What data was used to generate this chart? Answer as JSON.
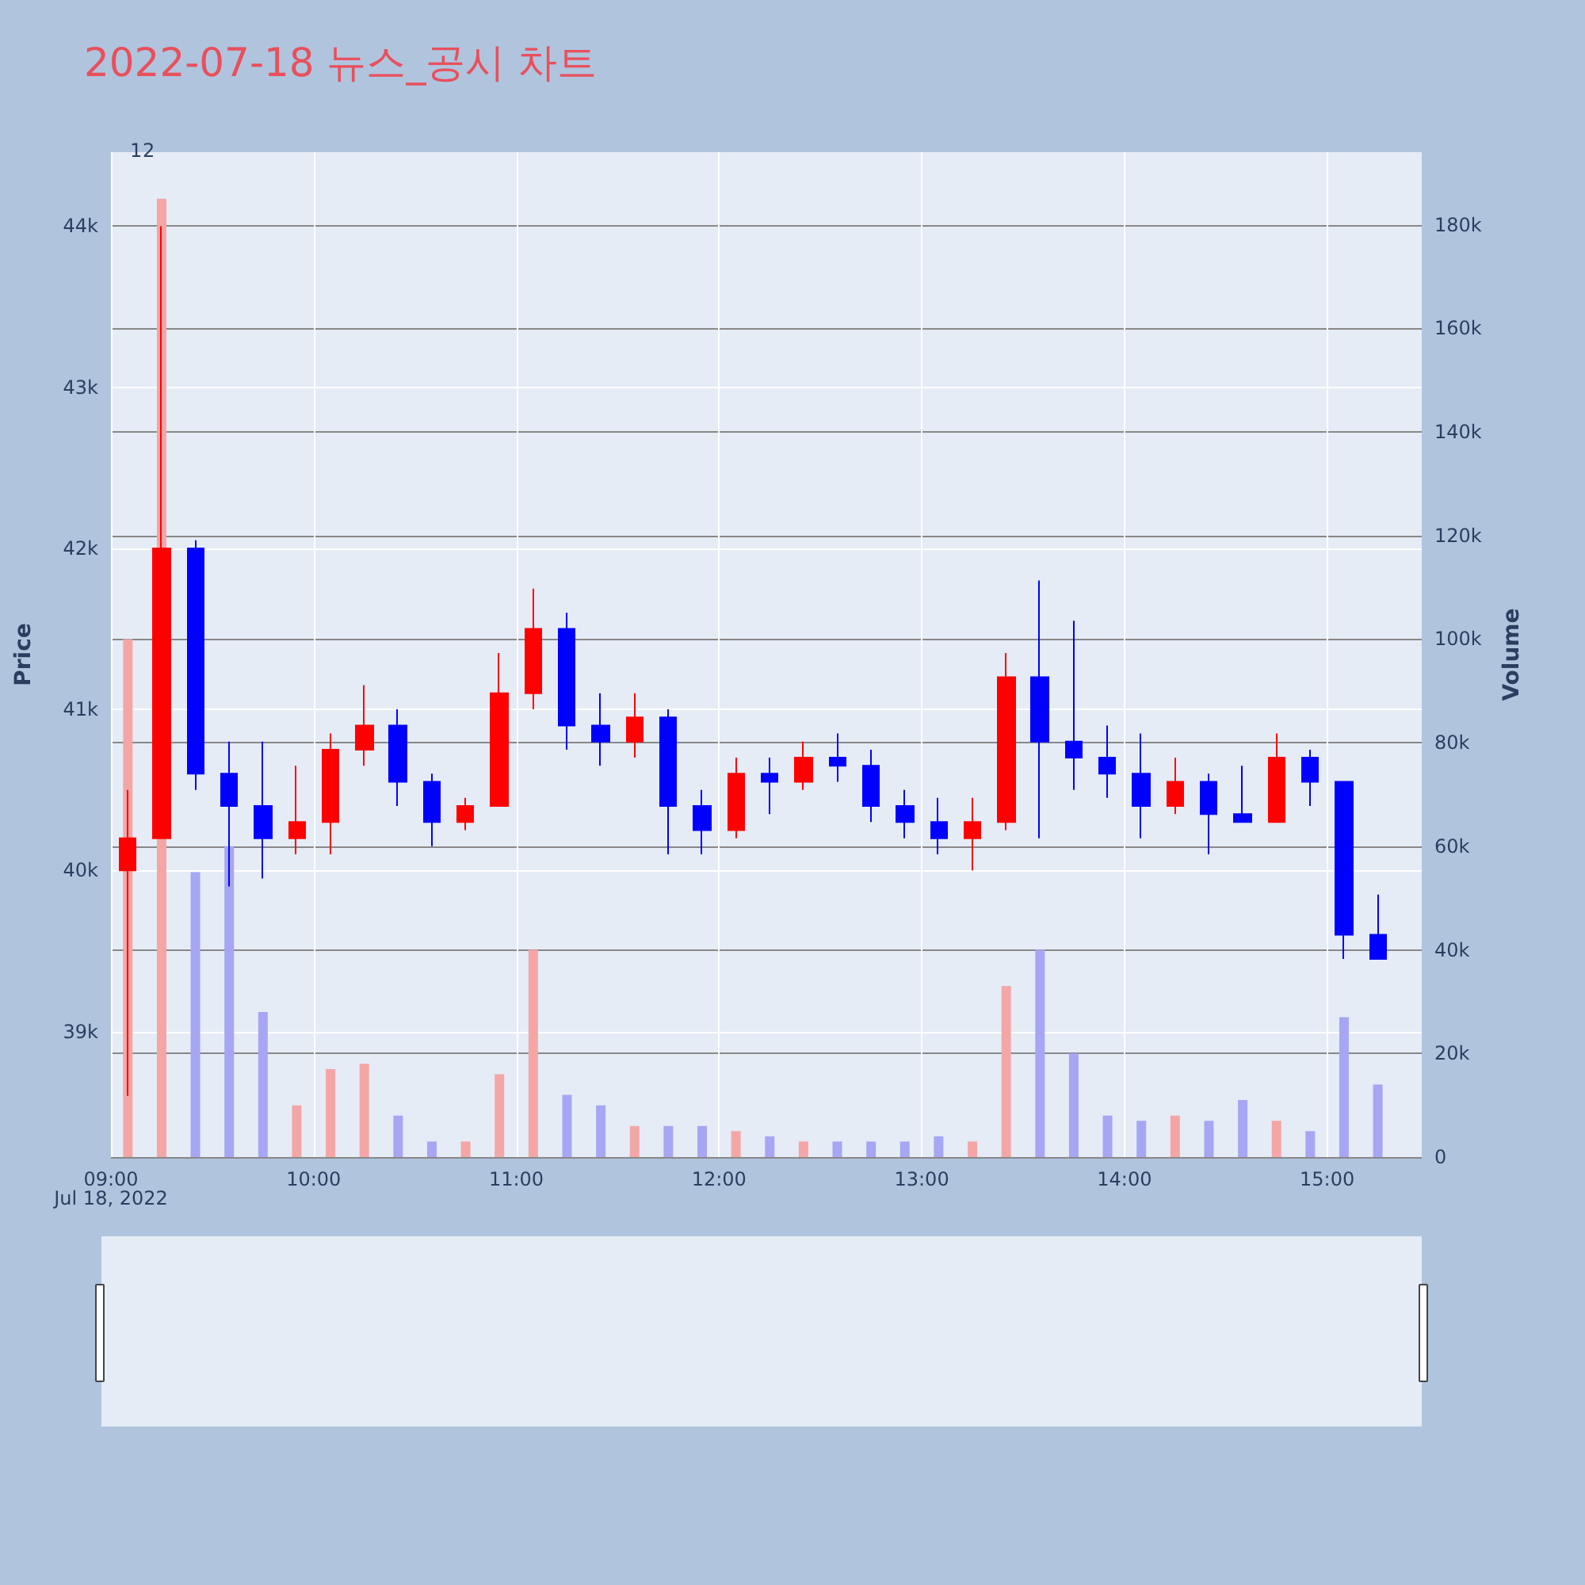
{
  "chart_data": {
    "type": "candlestick",
    "title": "2022-07-18 뉴스_공시 차트",
    "ylabel": "Price",
    "y2label": "Volume",
    "x": [
      "2022-07-18T09:05",
      "2022-07-18T09:15",
      "2022-07-18T09:25",
      "2022-07-18T09:35",
      "2022-07-18T09:45",
      "2022-07-18T09:55",
      "2022-07-18T10:05",
      "2022-07-18T10:15",
      "2022-07-18T10:25",
      "2022-07-18T10:35",
      "2022-07-18T10:45",
      "2022-07-18T10:55",
      "2022-07-18T11:05",
      "2022-07-18T11:15",
      "2022-07-18T11:25",
      "2022-07-18T11:35",
      "2022-07-18T11:45",
      "2022-07-18T11:55",
      "2022-07-18T12:05",
      "2022-07-18T12:15",
      "2022-07-18T12:25",
      "2022-07-18T12:35",
      "2022-07-18T12:45",
      "2022-07-18T12:55",
      "2022-07-18T13:05",
      "2022-07-18T13:15",
      "2022-07-18T13:25",
      "2022-07-18T13:35",
      "2022-07-18T13:45",
      "2022-07-18T13:55",
      "2022-07-18T14:05",
      "2022-07-18T14:15",
      "2022-07-18T14:25",
      "2022-07-18T14:35",
      "2022-07-18T14:45",
      "2022-07-18T14:55",
      "2022-07-18T15:05",
      "2022-07-18T15:15"
    ],
    "series": [
      {
        "ohlc": [
          [
            40000,
            40500,
            38600,
            40200
          ],
          [
            40200,
            44000,
            40200,
            42000
          ],
          [
            42000,
            42050,
            40500,
            40600
          ],
          [
            40600,
            40800,
            39900,
            40400
          ],
          [
            40400,
            40800,
            39950,
            40200
          ],
          [
            40200,
            40650,
            40100,
            40300
          ],
          [
            40300,
            40850,
            40100,
            40750
          ],
          [
            40750,
            41150,
            40650,
            40900
          ],
          [
            40900,
            41000,
            40400,
            40550
          ],
          [
            40550,
            40600,
            40150,
            40300
          ],
          [
            40300,
            40450,
            40250,
            40400
          ],
          [
            40400,
            41350,
            40400,
            41100
          ],
          [
            41100,
            41750,
            41000,
            41500
          ],
          [
            41500,
            41600,
            40750,
            40900
          ],
          [
            40900,
            41100,
            40650,
            40800
          ],
          [
            40800,
            41100,
            40700,
            40950
          ],
          [
            40950,
            41000,
            40100,
            40400
          ],
          [
            40400,
            40500,
            40100,
            40250
          ],
          [
            40250,
            40700,
            40200,
            40600
          ],
          [
            40600,
            40700,
            40350,
            40550
          ],
          [
            40550,
            40800,
            40500,
            40700
          ],
          [
            40700,
            40850,
            40550,
            40650
          ],
          [
            40650,
            40750,
            40300,
            40400
          ],
          [
            40400,
            40500,
            40200,
            40300
          ],
          [
            40300,
            40450,
            40100,
            40200
          ],
          [
            40200,
            40450,
            40000,
            40300
          ],
          [
            40300,
            41350,
            40250,
            41200
          ],
          [
            41200,
            41800,
            40200,
            40800
          ],
          [
            40800,
            41550,
            40500,
            40700
          ],
          [
            40700,
            40900,
            40450,
            40600
          ],
          [
            40600,
            40850,
            40200,
            40400
          ],
          [
            40400,
            40700,
            40350,
            40550
          ],
          [
            40550,
            40600,
            40100,
            40350
          ],
          [
            40350,
            40650,
            40300,
            40300
          ],
          [
            40300,
            40850,
            40300,
            40700
          ],
          [
            40700,
            40750,
            40400,
            40550
          ],
          [
            40550,
            40550,
            39450,
            39600
          ],
          [
            39600,
            39850,
            39450,
            39450
          ]
        ],
        "colors": [
          "#ff0000",
          "#ff0000",
          "#0000ff",
          "#0000ff",
          "#0000ff",
          "#ff0000",
          "#ff0000",
          "#ff0000",
          "#0000ff",
          "#0000ff",
          "#ff0000",
          "#ff0000",
          "#ff0000",
          "#0000ff",
          "#0000ff",
          "#ff0000",
          "#0000ff",
          "#0000ff",
          "#ff0000",
          "#0000ff",
          "#ff0000",
          "#0000ff",
          "#0000ff",
          "#0000ff",
          "#0000ff",
          "#ff0000",
          "#ff0000",
          "#0000ff",
          "#0000ff",
          "#0000ff",
          "#0000ff",
          "#ff0000",
          "#0000ff",
          "#0000ff",
          "#ff0000",
          "#0000ff",
          "#0000ff",
          "#0000ff"
        ]
      },
      {
        "type": "bar",
        "axis": "y2",
        "values": [
          100000,
          185000,
          55000,
          60000,
          28000,
          10000,
          17000,
          18000,
          8000,
          3000,
          3000,
          16000,
          40000,
          12000,
          10000,
          6000,
          6000,
          6000,
          5000,
          4000,
          3000,
          3000,
          3000,
          3000,
          4000,
          3000,
          33000,
          40000,
          20000,
          8000,
          7000,
          8000,
          7000,
          11000,
          7000,
          5000,
          27000,
          14000
        ],
        "colors": [
          "#f4a6a6",
          "#f4a6a6",
          "#a6a6f4",
          "#a6a6f4",
          "#a6a6f4",
          "#f4a6a6",
          "#f4a6a6",
          "#f4a6a6",
          "#a6a6f4",
          "#a6a6f4",
          "#f4a6a6",
          "#f4a6a6",
          "#f4a6a6",
          "#a6a6f4",
          "#a6a6f4",
          "#f4a6a6",
          "#a6a6f4",
          "#a6a6f4",
          "#f4a6a6",
          "#a6a6f4",
          "#f4a6a6",
          "#a6a6f4",
          "#a6a6f4",
          "#a6a6f4",
          "#a6a6f4",
          "#f4a6a6",
          "#f4a6a6",
          "#a6a6f4",
          "#a6a6f4",
          "#a6a6f4",
          "#a6a6f4",
          "#f4a6a6",
          "#a6a6f4",
          "#a6a6f4",
          "#f4a6a6",
          "#a6a6f4",
          "#a6a6f4",
          "#a6a6f4"
        ]
      }
    ],
    "xlim": [
      "2022-07-18T09:00",
      "2022-07-18T15:28"
    ],
    "xticks": [
      {
        "value": "2022-07-18T09:00",
        "label": "09:00\nJul 18, 2022"
      },
      {
        "value": "2022-07-18T10:00",
        "label": "10:00"
      },
      {
        "value": "2022-07-18T11:00",
        "label": "11:00"
      },
      {
        "value": "2022-07-18T12:00",
        "label": "12:00"
      },
      {
        "value": "2022-07-18T13:00",
        "label": "13:00"
      },
      {
        "value": "2022-07-18T14:00",
        "label": "14:00"
      },
      {
        "value": "2022-07-18T15:00",
        "label": "15:00"
      }
    ],
    "ylim": [
      38220,
      44460
    ],
    "yticks": [
      {
        "value": 39000,
        "label": "39k"
      },
      {
        "value": 40000,
        "label": "40k"
      },
      {
        "value": 41000,
        "label": "41k"
      },
      {
        "value": 42000,
        "label": "42k"
      },
      {
        "value": 43000,
        "label": "43k"
      },
      {
        "value": 44000,
        "label": "44k"
      }
    ],
    "y2lim": [
      0,
      194000
    ],
    "y2ticks": [
      0,
      {
        "value": 20000,
        "label": "20k"
      },
      {
        "value": 40000,
        "label": "40k"
      },
      {
        "value": 60000,
        "label": "60k"
      },
      {
        "value": 80000,
        "label": "80k"
      },
      {
        "value": 100000,
        "label": "100k"
      },
      {
        "value": 120000,
        "label": "120k"
      },
      {
        "value": 140000,
        "label": "140k"
      },
      {
        "value": 160000,
        "label": "160k"
      },
      {
        "value": 180000,
        "label": "180k"
      }
    ],
    "grid": true,
    "annotations": [
      "1",
      "2"
    ]
  }
}
